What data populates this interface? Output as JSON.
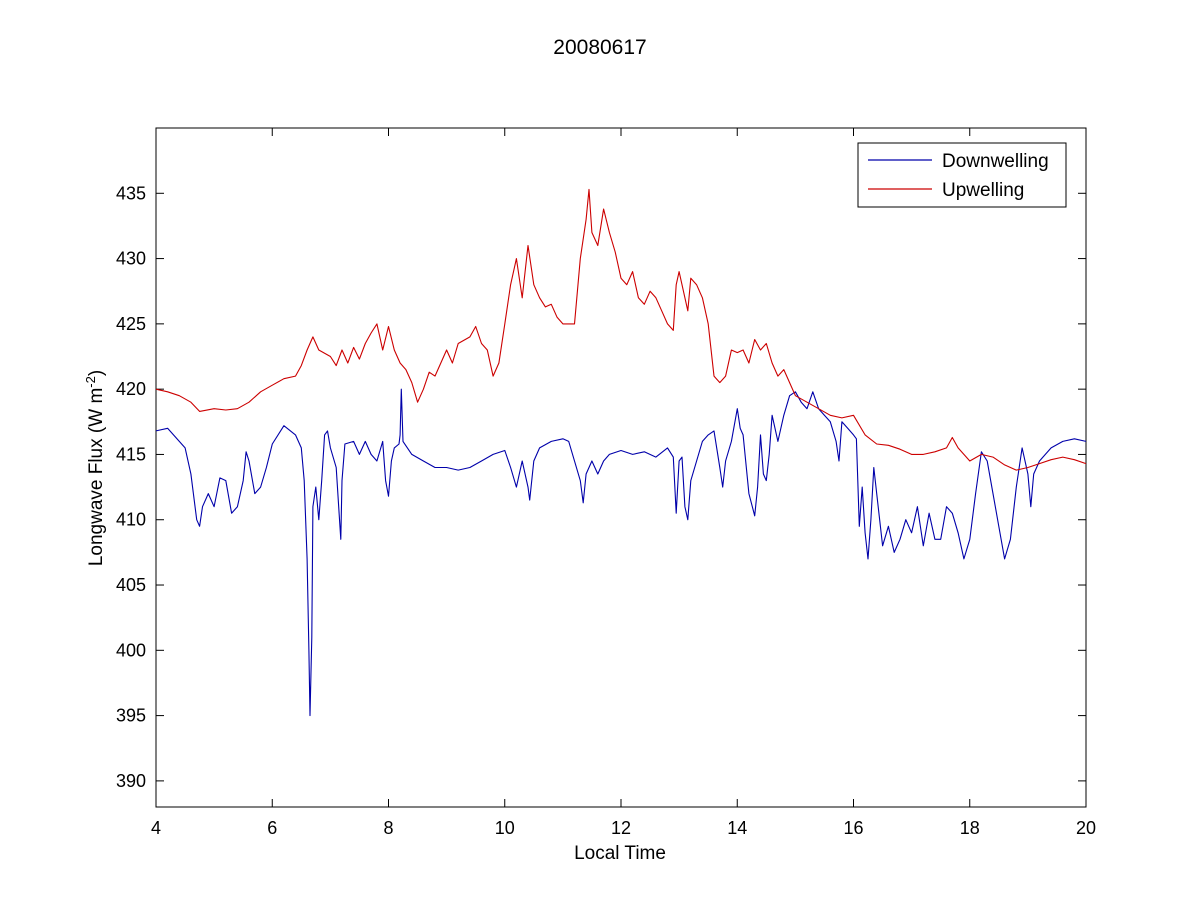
{
  "chart_data": {
    "type": "line",
    "title": "20080617",
    "xlabel": "Local Time",
    "ylabel": {
      "prefix": "Longwave Flux (W m",
      "superscript": "-2",
      "suffix": ")"
    },
    "xlim": [
      4,
      20
    ],
    "ylim": [
      388,
      440
    ],
    "xticks": [
      4,
      6,
      8,
      10,
      12,
      14,
      16,
      18,
      20
    ],
    "yticks": [
      390,
      395,
      400,
      405,
      410,
      415,
      420,
      425,
      430,
      435
    ],
    "grid": false,
    "legend_position": "top-right",
    "series": [
      {
        "name": "Downwelling",
        "color": "#0000aa",
        "points": [
          [
            4.0,
            416.8
          ],
          [
            4.2,
            417.0
          ],
          [
            4.4,
            416.0
          ],
          [
            4.5,
            415.5
          ],
          [
            4.6,
            413.5
          ],
          [
            4.7,
            410.0
          ],
          [
            4.75,
            409.5
          ],
          [
            4.8,
            411.0
          ],
          [
            4.9,
            412.0
          ],
          [
            5.0,
            411.0
          ],
          [
            5.1,
            413.2
          ],
          [
            5.2,
            413.0
          ],
          [
            5.3,
            410.5
          ],
          [
            5.4,
            411.0
          ],
          [
            5.5,
            413.0
          ],
          [
            5.55,
            415.2
          ],
          [
            5.6,
            414.5
          ],
          [
            5.7,
            412.0
          ],
          [
            5.8,
            412.5
          ],
          [
            5.9,
            414.0
          ],
          [
            6.0,
            415.8
          ],
          [
            6.2,
            417.2
          ],
          [
            6.4,
            416.5
          ],
          [
            6.5,
            415.5
          ],
          [
            6.55,
            413.0
          ],
          [
            6.6,
            407.0
          ],
          [
            6.63,
            400.0
          ],
          [
            6.65,
            395.0
          ],
          [
            6.68,
            401.0
          ],
          [
            6.7,
            411.0
          ],
          [
            6.75,
            412.5
          ],
          [
            6.8,
            410.0
          ],
          [
            6.85,
            413.0
          ],
          [
            6.9,
            416.5
          ],
          [
            6.95,
            416.8
          ],
          [
            7.0,
            415.5
          ],
          [
            7.1,
            414.0
          ],
          [
            7.15,
            410.5
          ],
          [
            7.18,
            408.5
          ],
          [
            7.2,
            413.0
          ],
          [
            7.25,
            415.8
          ],
          [
            7.4,
            416.0
          ],
          [
            7.5,
            415.0
          ],
          [
            7.6,
            416.0
          ],
          [
            7.7,
            415.0
          ],
          [
            7.8,
            414.5
          ],
          [
            7.9,
            416.0
          ],
          [
            7.95,
            413.0
          ],
          [
            8.0,
            411.8
          ],
          [
            8.05,
            414.5
          ],
          [
            8.1,
            415.5
          ],
          [
            8.18,
            415.8
          ],
          [
            8.2,
            416.5
          ],
          [
            8.22,
            420.0
          ],
          [
            8.25,
            416.0
          ],
          [
            8.4,
            415.0
          ],
          [
            8.6,
            414.5
          ],
          [
            8.8,
            414.0
          ],
          [
            9.0,
            414.0
          ],
          [
            9.2,
            413.8
          ],
          [
            9.4,
            414.0
          ],
          [
            9.6,
            414.5
          ],
          [
            9.8,
            415.0
          ],
          [
            10.0,
            415.3
          ],
          [
            10.1,
            414.0
          ],
          [
            10.2,
            412.5
          ],
          [
            10.3,
            414.5
          ],
          [
            10.4,
            412.5
          ],
          [
            10.43,
            411.5
          ],
          [
            10.5,
            414.5
          ],
          [
            10.6,
            415.5
          ],
          [
            10.8,
            416.0
          ],
          [
            11.0,
            416.2
          ],
          [
            11.1,
            416.0
          ],
          [
            11.2,
            414.5
          ],
          [
            11.3,
            413.0
          ],
          [
            11.35,
            411.3
          ],
          [
            11.4,
            413.5
          ],
          [
            11.5,
            414.5
          ],
          [
            11.6,
            413.5
          ],
          [
            11.7,
            414.5
          ],
          [
            11.8,
            415.0
          ],
          [
            12.0,
            415.3
          ],
          [
            12.2,
            415.0
          ],
          [
            12.4,
            415.2
          ],
          [
            12.6,
            414.8
          ],
          [
            12.8,
            415.5
          ],
          [
            12.9,
            414.8
          ],
          [
            12.95,
            410.5
          ],
          [
            13.0,
            414.5
          ],
          [
            13.05,
            414.8
          ],
          [
            13.1,
            411.0
          ],
          [
            13.15,
            410.0
          ],
          [
            13.2,
            413.0
          ],
          [
            13.3,
            414.5
          ],
          [
            13.4,
            416.0
          ],
          [
            13.5,
            416.5
          ],
          [
            13.6,
            416.8
          ],
          [
            13.7,
            414.0
          ],
          [
            13.75,
            412.5
          ],
          [
            13.8,
            414.5
          ],
          [
            13.9,
            416.0
          ],
          [
            14.0,
            418.5
          ],
          [
            14.05,
            417.0
          ],
          [
            14.1,
            416.5
          ],
          [
            14.2,
            412.0
          ],
          [
            14.3,
            410.3
          ],
          [
            14.35,
            412.5
          ],
          [
            14.4,
            416.5
          ],
          [
            14.45,
            413.5
          ],
          [
            14.5,
            413.0
          ],
          [
            14.55,
            415.0
          ],
          [
            14.6,
            418.0
          ],
          [
            14.7,
            416.0
          ],
          [
            14.8,
            418.0
          ],
          [
            14.9,
            419.5
          ],
          [
            15.0,
            419.8
          ],
          [
            15.1,
            419.0
          ],
          [
            15.2,
            418.5
          ],
          [
            15.3,
            419.8
          ],
          [
            15.4,
            418.5
          ],
          [
            15.5,
            418.0
          ],
          [
            15.6,
            417.5
          ],
          [
            15.7,
            416.0
          ],
          [
            15.75,
            414.5
          ],
          [
            15.8,
            417.5
          ],
          [
            15.9,
            417.0
          ],
          [
            16.0,
            416.5
          ],
          [
            16.05,
            416.2
          ],
          [
            16.1,
            409.5
          ],
          [
            16.15,
            412.5
          ],
          [
            16.2,
            409.0
          ],
          [
            16.25,
            407.0
          ],
          [
            16.3,
            410.0
          ],
          [
            16.35,
            414.0
          ],
          [
            16.4,
            412.0
          ],
          [
            16.5,
            408.0
          ],
          [
            16.6,
            409.5
          ],
          [
            16.7,
            407.5
          ],
          [
            16.8,
            408.5
          ],
          [
            16.9,
            410.0
          ],
          [
            17.0,
            409.0
          ],
          [
            17.1,
            411.0
          ],
          [
            17.2,
            408.0
          ],
          [
            17.3,
            410.5
          ],
          [
            17.4,
            408.5
          ],
          [
            17.5,
            408.5
          ],
          [
            17.6,
            411.0
          ],
          [
            17.7,
            410.5
          ],
          [
            17.8,
            409.0
          ],
          [
            17.9,
            407.0
          ],
          [
            18.0,
            408.5
          ],
          [
            18.1,
            412.0
          ],
          [
            18.2,
            415.2
          ],
          [
            18.3,
            414.5
          ],
          [
            18.4,
            412.0
          ],
          [
            18.5,
            409.5
          ],
          [
            18.6,
            407.0
          ],
          [
            18.7,
            408.5
          ],
          [
            18.8,
            412.5
          ],
          [
            18.9,
            415.5
          ],
          [
            19.0,
            413.5
          ],
          [
            19.05,
            411.0
          ],
          [
            19.1,
            413.5
          ],
          [
            19.2,
            414.5
          ],
          [
            19.4,
            415.5
          ],
          [
            19.6,
            416.0
          ],
          [
            19.8,
            416.2
          ],
          [
            20.0,
            416.0
          ]
        ]
      },
      {
        "name": "Upwelling",
        "color": "#cc0000",
        "points": [
          [
            4.0,
            420.0
          ],
          [
            4.2,
            419.8
          ],
          [
            4.4,
            419.5
          ],
          [
            4.6,
            419.0
          ],
          [
            4.75,
            418.3
          ],
          [
            5.0,
            418.5
          ],
          [
            5.2,
            418.4
          ],
          [
            5.4,
            418.5
          ],
          [
            5.6,
            419.0
          ],
          [
            5.8,
            419.8
          ],
          [
            6.0,
            420.3
          ],
          [
            6.2,
            420.8
          ],
          [
            6.4,
            421.0
          ],
          [
            6.5,
            421.8
          ],
          [
            6.6,
            423.0
          ],
          [
            6.7,
            424.0
          ],
          [
            6.8,
            423.0
          ],
          [
            7.0,
            422.5
          ],
          [
            7.1,
            421.8
          ],
          [
            7.2,
            423.0
          ],
          [
            7.3,
            422.0
          ],
          [
            7.4,
            423.2
          ],
          [
            7.5,
            422.3
          ],
          [
            7.6,
            423.5
          ],
          [
            7.7,
            424.3
          ],
          [
            7.8,
            425.0
          ],
          [
            7.85,
            424.0
          ],
          [
            7.9,
            423.0
          ],
          [
            8.0,
            424.8
          ],
          [
            8.1,
            423.0
          ],
          [
            8.2,
            422.0
          ],
          [
            8.3,
            421.5
          ],
          [
            8.4,
            420.5
          ],
          [
            8.5,
            419.0
          ],
          [
            8.6,
            420.0
          ],
          [
            8.7,
            421.3
          ],
          [
            8.8,
            421.0
          ],
          [
            9.0,
            423.0
          ],
          [
            9.1,
            422.0
          ],
          [
            9.2,
            423.5
          ],
          [
            9.4,
            424.0
          ],
          [
            9.5,
            424.8
          ],
          [
            9.6,
            423.5
          ],
          [
            9.7,
            423.0
          ],
          [
            9.8,
            421.0
          ],
          [
            9.9,
            422.0
          ],
          [
            10.0,
            425.0
          ],
          [
            10.1,
            428.0
          ],
          [
            10.2,
            430.0
          ],
          [
            10.3,
            427.0
          ],
          [
            10.4,
            431.0
          ],
          [
            10.5,
            428.0
          ],
          [
            10.6,
            427.0
          ],
          [
            10.7,
            426.3
          ],
          [
            10.8,
            426.5
          ],
          [
            10.9,
            425.5
          ],
          [
            11.0,
            425.0
          ],
          [
            11.2,
            425.0
          ],
          [
            11.3,
            430.0
          ],
          [
            11.4,
            433.0
          ],
          [
            11.45,
            435.3
          ],
          [
            11.5,
            432.0
          ],
          [
            11.6,
            431.0
          ],
          [
            11.7,
            433.8
          ],
          [
            11.8,
            432.0
          ],
          [
            11.9,
            430.5
          ],
          [
            12.0,
            428.5
          ],
          [
            12.1,
            428.0
          ],
          [
            12.2,
            429.0
          ],
          [
            12.3,
            427.0
          ],
          [
            12.4,
            426.5
          ],
          [
            12.5,
            427.5
          ],
          [
            12.6,
            427.0
          ],
          [
            12.7,
            426.0
          ],
          [
            12.8,
            425.0
          ],
          [
            12.9,
            424.5
          ],
          [
            12.95,
            428.0
          ],
          [
            13.0,
            429.0
          ],
          [
            13.1,
            427.0
          ],
          [
            13.15,
            426.0
          ],
          [
            13.2,
            428.5
          ],
          [
            13.3,
            428.0
          ],
          [
            13.4,
            427.0
          ],
          [
            13.5,
            425.0
          ],
          [
            13.6,
            421.0
          ],
          [
            13.7,
            420.5
          ],
          [
            13.8,
            421.0
          ],
          [
            13.9,
            423.0
          ],
          [
            14.0,
            422.8
          ],
          [
            14.1,
            423.0
          ],
          [
            14.2,
            422.0
          ],
          [
            14.3,
            423.8
          ],
          [
            14.4,
            423.0
          ],
          [
            14.5,
            423.5
          ],
          [
            14.6,
            422.0
          ],
          [
            14.7,
            421.0
          ],
          [
            14.8,
            421.5
          ],
          [
            14.9,
            420.5
          ],
          [
            15.0,
            419.5
          ],
          [
            15.2,
            419.0
          ],
          [
            15.4,
            418.5
          ],
          [
            15.6,
            418.0
          ],
          [
            15.8,
            417.8
          ],
          [
            16.0,
            418.0
          ],
          [
            16.2,
            416.5
          ],
          [
            16.4,
            415.8
          ],
          [
            16.6,
            415.7
          ],
          [
            16.8,
            415.4
          ],
          [
            17.0,
            415.0
          ],
          [
            17.2,
            415.0
          ],
          [
            17.4,
            415.2
          ],
          [
            17.6,
            415.5
          ],
          [
            17.7,
            416.3
          ],
          [
            17.8,
            415.5
          ],
          [
            18.0,
            414.5
          ],
          [
            18.2,
            415.0
          ],
          [
            18.4,
            414.8
          ],
          [
            18.6,
            414.2
          ],
          [
            18.8,
            413.8
          ],
          [
            19.0,
            414.0
          ],
          [
            19.2,
            414.3
          ],
          [
            19.4,
            414.6
          ],
          [
            19.6,
            414.8
          ],
          [
            19.8,
            414.6
          ],
          [
            20.0,
            414.3
          ]
        ]
      }
    ]
  }
}
